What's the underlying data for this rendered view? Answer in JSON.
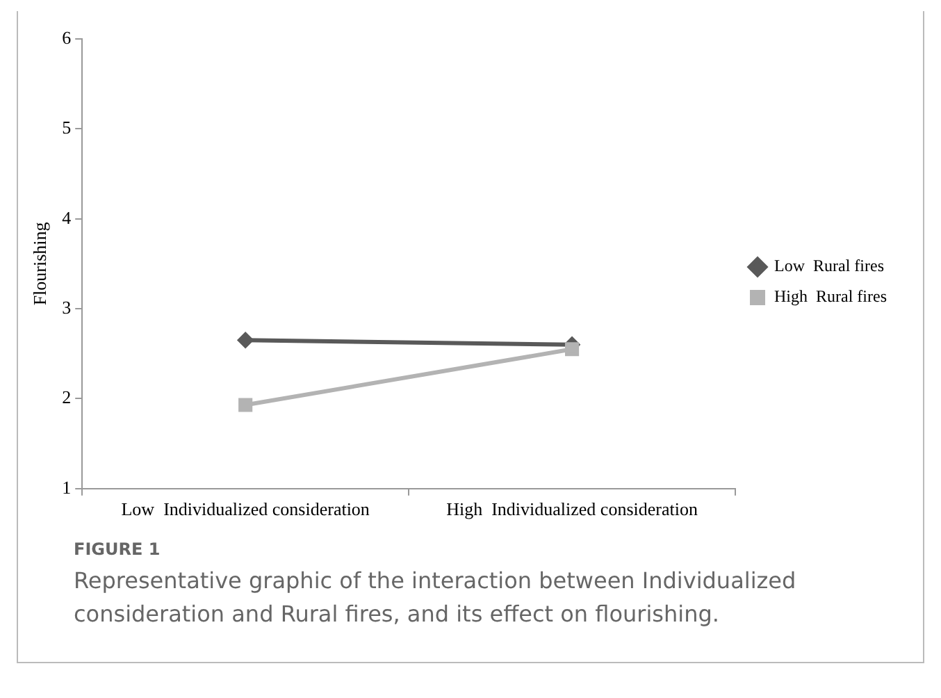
{
  "chart_data": {
    "type": "line",
    "ylabel": "Flourishing",
    "categories": [
      "Low  Individualized consideration",
      "High  Individualized consideration"
    ],
    "series": [
      {
        "name": "Low  Rural fires",
        "color": "#595959",
        "marker": "diamond",
        "values": [
          2.65,
          2.6
        ]
      },
      {
        "name": "High  Rural fires",
        "color": "#b3b3b3",
        "marker": "square",
        "values": [
          1.93,
          2.55
        ]
      }
    ],
    "ylim": [
      1,
      6
    ],
    "yticks": [
      1,
      2,
      3,
      4,
      5,
      6
    ],
    "grid": false,
    "legend": "right",
    "annotations": [
      "FIGURE 1",
      "Representative graphic of the interaction between Individualized consideration and Rural fires, and its effect on flourishing."
    ]
  }
}
